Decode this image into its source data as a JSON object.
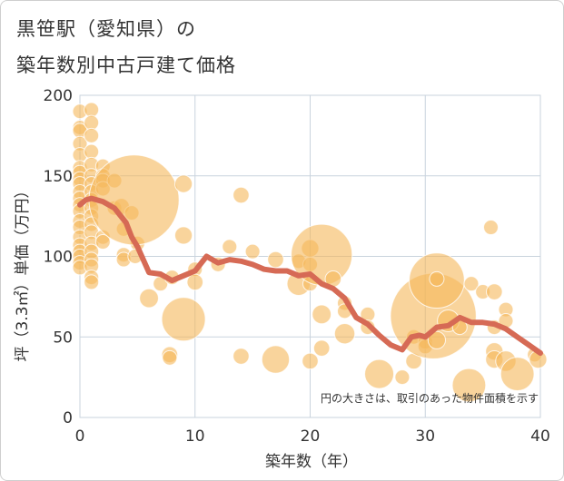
{
  "chart_data": {
    "type": "scatter",
    "title_line1": "黒笹駅（愛知県）の",
    "title_line2": "築年数別中古戸建て価格",
    "xlabel": "築年数（年）",
    "ylabel": "坪（3.3㎡）単価（万円）",
    "xlim": [
      0,
      40
    ],
    "ylim": [
      0,
      200
    ],
    "xticks": [
      0,
      10,
      20,
      30,
      40
    ],
    "yticks": [
      0,
      50,
      100,
      150,
      200
    ],
    "note": "円の大きさは、取引のあった物件面積を示す",
    "colors": {
      "bubble": "#f5b85a",
      "line": "#d66a55",
      "grid": "#c9d3dd"
    },
    "bubbles": [
      [
        0,
        190,
        1
      ],
      [
        0,
        180,
        1
      ],
      [
        0,
        178,
        1
      ],
      [
        0,
        170,
        1
      ],
      [
        0,
        163,
        1
      ],
      [
        0,
        155,
        1
      ],
      [
        0,
        152,
        1
      ],
      [
        0,
        148,
        1
      ],
      [
        0,
        145,
        1
      ],
      [
        0,
        140,
        1
      ],
      [
        0,
        136,
        1
      ],
      [
        0,
        132,
        1
      ],
      [
        0,
        128,
        1
      ],
      [
        0,
        122,
        1
      ],
      [
        0,
        118,
        1
      ],
      [
        0,
        112,
        1
      ],
      [
        0,
        107,
        1
      ],
      [
        0,
        103,
        1
      ],
      [
        0,
        100,
        1
      ],
      [
        0,
        96,
        1
      ],
      [
        0,
        93,
        1
      ],
      [
        1,
        191,
        1
      ],
      [
        1,
        183,
        1
      ],
      [
        1,
        175,
        1
      ],
      [
        1,
        165,
        1
      ],
      [
        1,
        157,
        1
      ],
      [
        1,
        150,
        1
      ],
      [
        1,
        145,
        1
      ],
      [
        1,
        140,
        1
      ],
      [
        1,
        135,
        1
      ],
      [
        1,
        130,
        1
      ],
      [
        1,
        125,
        1
      ],
      [
        1,
        120,
        1
      ],
      [
        1,
        115,
        1
      ],
      [
        1,
        108,
        1
      ],
      [
        1,
        103,
        1
      ],
      [
        1,
        98,
        1
      ],
      [
        1,
        94,
        1
      ],
      [
        1,
        87,
        1
      ],
      [
        1,
        84,
        1
      ],
      [
        2,
        156,
        1
      ],
      [
        2,
        150,
        1
      ],
      [
        2,
        147,
        1
      ],
      [
        2,
        142,
        1
      ],
      [
        2,
        112,
        1
      ],
      [
        2,
        109,
        1
      ],
      [
        3,
        147,
        1
      ],
      [
        3,
        130,
        1
      ],
      [
        3.6,
        131,
        1.1
      ],
      [
        3.8,
        117,
        1
      ],
      [
        3.8,
        101,
        1
      ],
      [
        3.8,
        98,
        1
      ],
      [
        4.5,
        127,
        1
      ],
      [
        5,
        108,
        1
      ],
      [
        4.8,
        100,
        1
      ],
      [
        4.7,
        135,
        6.2
      ],
      [
        6,
        74,
        1.3
      ],
      [
        7,
        83,
        1
      ],
      [
        8,
        87,
        1
      ],
      [
        7.8,
        39,
        1.1
      ],
      [
        7.8,
        37,
        1
      ],
      [
        9,
        145,
        1.2
      ],
      [
        9,
        113,
        1.2
      ],
      [
        9,
        61,
        3
      ],
      [
        10,
        92,
        1
      ],
      [
        10,
        84,
        1.1
      ],
      [
        12,
        95,
        1
      ],
      [
        13,
        106,
        1
      ],
      [
        14,
        138,
        1.1
      ],
      [
        14,
        38,
        1.1
      ],
      [
        15,
        103,
        1
      ],
      [
        17,
        98,
        1.1
      ],
      [
        17,
        36,
        1.9
      ],
      [
        19,
        83,
        1.6
      ],
      [
        19,
        97,
        1
      ],
      [
        20,
        105,
        1.2
      ],
      [
        20,
        95,
        1
      ],
      [
        20,
        83,
        1
      ],
      [
        20,
        35,
        1.1
      ],
      [
        21,
        101,
        4.2
      ],
      [
        21,
        64,
        1.3
      ],
      [
        21,
        43,
        1.1
      ],
      [
        22,
        86,
        1.1
      ],
      [
        23,
        71,
        1
      ],
      [
        23,
        66,
        1
      ],
      [
        23,
        52,
        1.4
      ],
      [
        25,
        64,
        1
      ],
      [
        25,
        56,
        1
      ],
      [
        26,
        27,
        2
      ],
      [
        28,
        25,
        1
      ],
      [
        29,
        35,
        1.1
      ],
      [
        29,
        50,
        1
      ],
      [
        30,
        47,
        1
      ],
      [
        30,
        44,
        1
      ],
      [
        30.7,
        63,
        5.9
      ],
      [
        31,
        85,
        3.8
      ],
      [
        31,
        86,
        1
      ],
      [
        31,
        48,
        1.2
      ],
      [
        32,
        60,
        1.5
      ],
      [
        33,
        56,
        1
      ],
      [
        34,
        83,
        1
      ],
      [
        33.8,
        20,
        2.3
      ],
      [
        35,
        78,
        1
      ],
      [
        35.7,
        118,
        1
      ],
      [
        36,
        78,
        1.1
      ],
      [
        36,
        56,
        1
      ],
      [
        36,
        41,
        1.2
      ],
      [
        36,
        36,
        1.2
      ],
      [
        37,
        67,
        1
      ],
      [
        37,
        60,
        1
      ],
      [
        37,
        35,
        1.4
      ],
      [
        38,
        27,
        2.3
      ],
      [
        39.5,
        39,
        1
      ],
      [
        39.8,
        36,
        1.2
      ]
    ],
    "trend": [
      [
        0,
        132
      ],
      [
        0.5,
        135
      ],
      [
        1,
        136
      ],
      [
        2,
        134
      ],
      [
        2.5,
        132
      ],
      [
        3,
        130
      ],
      [
        4,
        121
      ],
      [
        4.5,
        112
      ],
      [
        5,
        106
      ],
      [
        6,
        90
      ],
      [
        7,
        89
      ],
      [
        8,
        85
      ],
      [
        9,
        88
      ],
      [
        10,
        91
      ],
      [
        11,
        100
      ],
      [
        12,
        96
      ],
      [
        13,
        98
      ],
      [
        14,
        97
      ],
      [
        15,
        95
      ],
      [
        16,
        92
      ],
      [
        17,
        91
      ],
      [
        18,
        91
      ],
      [
        19,
        88
      ],
      [
        20,
        89
      ],
      [
        21,
        83
      ],
      [
        22,
        80
      ],
      [
        23,
        74
      ],
      [
        24,
        62
      ],
      [
        25,
        58
      ],
      [
        26,
        51
      ],
      [
        27,
        45
      ],
      [
        28,
        42
      ],
      [
        28.8,
        50
      ],
      [
        29.5,
        51
      ],
      [
        30,
        50
      ],
      [
        31,
        56
      ],
      [
        32,
        57
      ],
      [
        33,
        62
      ],
      [
        34,
        59
      ],
      [
        35,
        59
      ],
      [
        36,
        58
      ],
      [
        37,
        55
      ],
      [
        38,
        50
      ],
      [
        39,
        45
      ],
      [
        40,
        40
      ]
    ]
  }
}
